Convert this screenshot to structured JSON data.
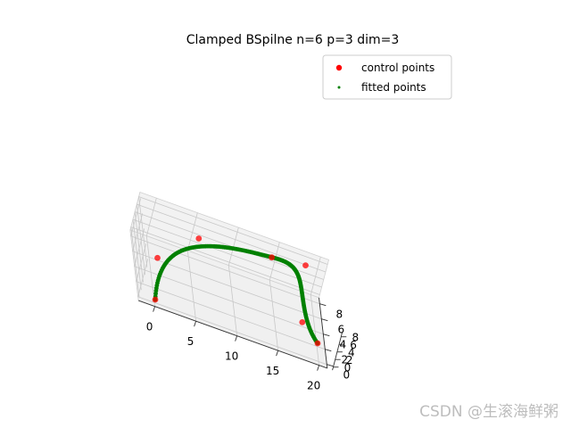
{
  "chart_data": {
    "type": "scatter",
    "projection": "3d",
    "title": "Clamped BSpilne n=6 p=3 dim=3",
    "xlabel": "",
    "ylabel": "",
    "zlabel": "",
    "xlim": [
      0,
      20
    ],
    "ylim": [
      0,
      8
    ],
    "zlim": [
      0,
      8
    ],
    "x_ticks": [
      "0",
      "5",
      "10",
      "15",
      "20"
    ],
    "y_ticks": [
      "0",
      "2",
      "4",
      "6",
      "8"
    ],
    "z_ticks": [
      "0",
      "2",
      "4",
      "6",
      "8"
    ],
    "grid": true,
    "legend_position": "upper right",
    "series": [
      {
        "name": "control points",
        "color": "#ff0000",
        "marker": "circle",
        "points": [
          {
            "x": 0,
            "y": 0,
            "z": 0
          },
          {
            "x": 0,
            "y": 3,
            "z": 5
          },
          {
            "x": 5,
            "y": 6,
            "z": 8
          },
          {
            "x": 14,
            "y": 7,
            "z": 8
          },
          {
            "x": 18,
            "y": 7,
            "z": 9
          },
          {
            "x": 18,
            "y": 3,
            "z": 2
          },
          {
            "x": 20,
            "y": 2,
            "z": 0
          }
        ]
      },
      {
        "name": "fitted points",
        "color": "#008000",
        "marker": "small-dot",
        "points": []
      }
    ]
  },
  "watermark": "CSDN @生滚海鲜粥"
}
